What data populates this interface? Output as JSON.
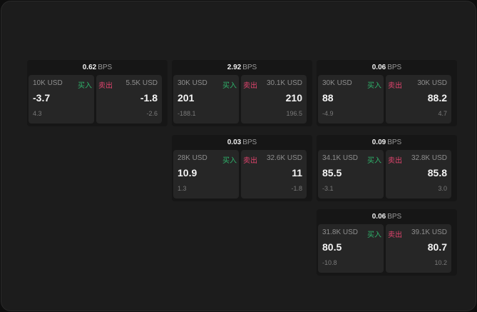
{
  "unit": "BPS",
  "buy_label": "买入",
  "sell_label": "卖出",
  "colors": {
    "buy": "#2fb36b",
    "sell": "#e2446e",
    "background": "#1c1c1c"
  },
  "widgets": [
    {
      "spread": "0.62",
      "bid": {
        "size": "10K USD",
        "price": "-3.7",
        "change": "4.3"
      },
      "ask": {
        "size": "5.5K USD",
        "price": "-1.8",
        "change": "-2.6"
      }
    },
    {
      "spread": "2.92",
      "bid": {
        "size": "30K USD",
        "price": "201",
        "change": "-188.1"
      },
      "ask": {
        "size": "30.1K USD",
        "price": "210",
        "change": "196.5"
      }
    },
    {
      "spread": "0.06",
      "bid": {
        "size": "30K USD",
        "price": "88",
        "change": "-4.9"
      },
      "ask": {
        "size": "30K USD",
        "price": "88.2",
        "change": "4.7"
      }
    },
    {
      "spread": "0.03",
      "bid": {
        "size": "28K USD",
        "price": "10.9",
        "change": "1.3"
      },
      "ask": {
        "size": "32.6K USD",
        "price": "11",
        "change": "-1.8"
      }
    },
    {
      "spread": "0.09",
      "bid": {
        "size": "34.1K USD",
        "price": "85.5",
        "change": "-3.1"
      },
      "ask": {
        "size": "32.8K USD",
        "price": "85.8",
        "change": "3.0"
      }
    },
    {
      "spread": "0.06",
      "bid": {
        "size": "31.8K USD",
        "price": "80.5",
        "change": "-10.8"
      },
      "ask": {
        "size": "39.1K USD",
        "price": "80.7",
        "change": "10.2"
      }
    }
  ]
}
